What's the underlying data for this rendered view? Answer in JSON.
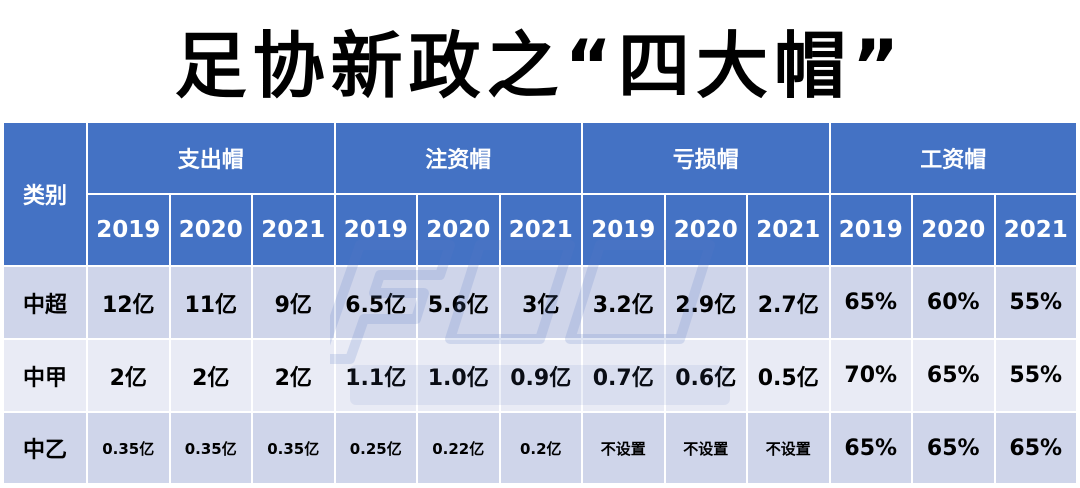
{
  "title": "足协新政之“四大帽”",
  "header": {
    "category_label": "类别",
    "groups": [
      "支出帽",
      "注资帽",
      "亏损帽",
      "工资帽"
    ],
    "years": [
      "2019",
      "2020",
      "2021",
      "2019",
      "2020",
      "2021",
      "2019",
      "2020",
      "2021",
      "2019",
      "2020",
      "2021"
    ]
  },
  "rows": [
    {
      "label": "中超",
      "values": [
        "12亿",
        "11亿",
        "9亿",
        "6.5亿",
        "5.6亿",
        "3亿",
        "3.2亿",
        "2.9亿",
        "2.7亿",
        "65%",
        "60%",
        "55%"
      ]
    },
    {
      "label": "中甲",
      "values": [
        "2亿",
        "2亿",
        "2亿",
        "1.1亿",
        "1.0亿",
        "0.9亿",
        "0.7亿",
        "0.6亿",
        "0.5亿",
        "70%",
        "65%",
        "55%"
      ]
    },
    {
      "label": "中乙",
      "values": [
        "0.35亿",
        "0.35亿",
        "0.35亿",
        "0.25亿",
        "0.22亿",
        "0.2亿",
        "不设置",
        "不设置",
        "不设置",
        "65%",
        "65%",
        "65%"
      ]
    }
  ],
  "colors": {
    "header_bg": "#4472c4",
    "row_dark": "#cfd5ea",
    "row_light": "#e9ebf5"
  }
}
